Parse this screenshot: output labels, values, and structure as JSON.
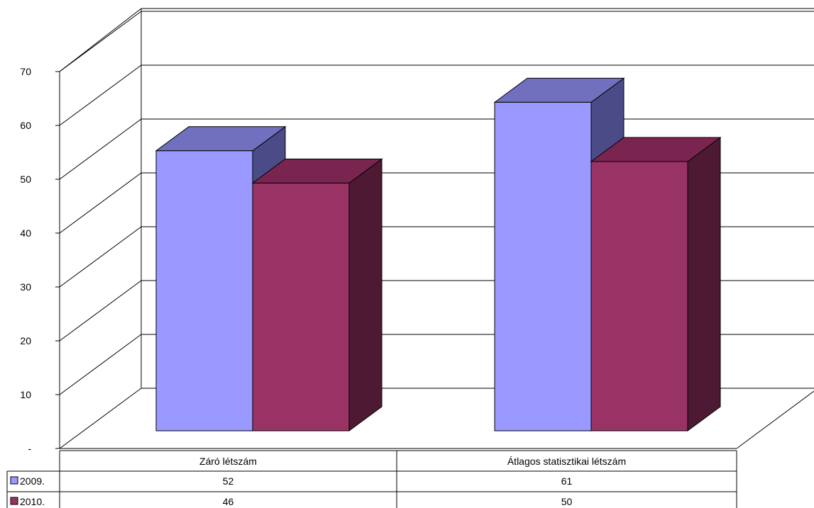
{
  "chart_data": {
    "type": "bar",
    "categories": [
      "Záró létszám",
      "Átlagos statisztikai létszám"
    ],
    "series": [
      {
        "name": "2009.",
        "values": [
          52,
          61
        ],
        "color": "#9999ff",
        "top_color": "#7070bf",
        "side_color": "#4b4b87"
      },
      {
        "name": "2010.",
        "values": [
          46,
          50
        ],
        "color": "#993366",
        "top_color": "#7a2550",
        "side_color": "#4e1a33"
      }
    ],
    "y_ticks": [
      "-",
      "10",
      "20",
      "30",
      "40",
      "50",
      "60",
      "70"
    ],
    "ylim": [
      0,
      70
    ],
    "grid": true,
    "legend": "data-table"
  }
}
